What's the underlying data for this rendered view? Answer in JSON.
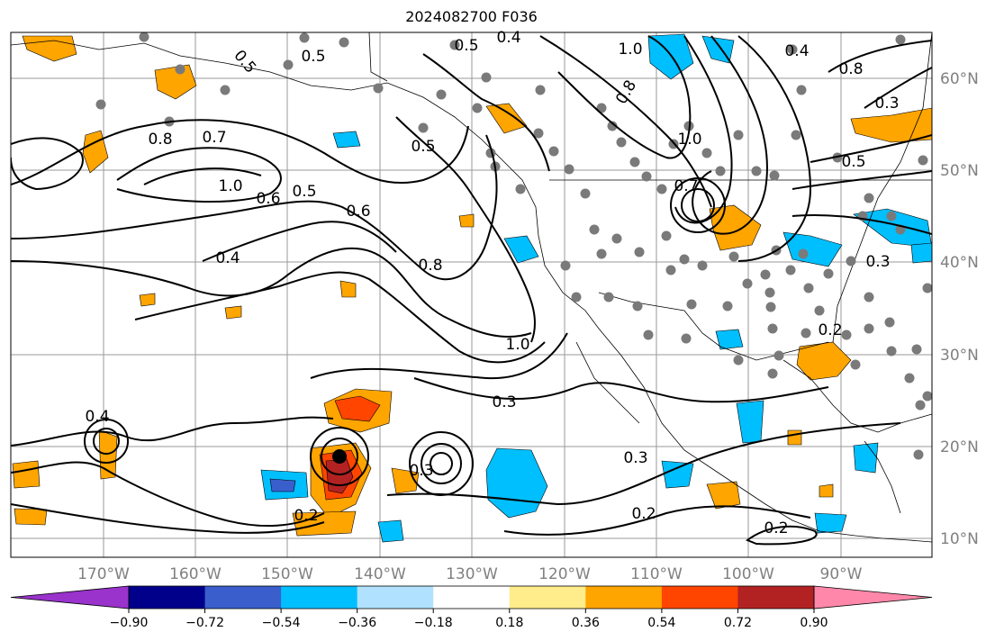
{
  "title": "2024082700 F036",
  "map": {
    "lon_labels": [
      "170°W",
      "160°W",
      "150°W",
      "140°W",
      "130°W",
      "120°W",
      "110°W",
      "100°W",
      "90°W"
    ],
    "lat_labels": [
      "60°N",
      "50°N",
      "40°N",
      "30°N",
      "20°N",
      "10°N"
    ],
    "contour_labels": [
      "0.5",
      "0.4",
      "0.5",
      "1.0",
      "0.8",
      "0.7",
      "0.8",
      "1.0",
      "0.6",
      "0.5",
      "0.4",
      "0.6",
      "0.8",
      "0.5",
      "1.0",
      "0.3",
      "0.4",
      "0.3",
      "0.2",
      "0.3",
      "0.2",
      "0.2",
      "0.4",
      "0.8",
      "1.0",
      "0.7",
      "0.5",
      "0.3",
      "0.2",
      "0.3",
      "0.5"
    ]
  },
  "colorbar": {
    "tick_labels": [
      "−0.90",
      "−0.72",
      "−0.54",
      "−0.36",
      "−0.18",
      "0.18",
      "0.36",
      "0.54",
      "0.72",
      "0.90"
    ],
    "colors": [
      "#9933cc",
      "#00008b",
      "#3a5fcd",
      "#00bfff",
      "#b0e2ff",
      "#ffffff",
      "#ffec8b",
      "#ffa500",
      "#ff4500",
      "#b22222",
      "#ff88aa"
    ]
  }
}
